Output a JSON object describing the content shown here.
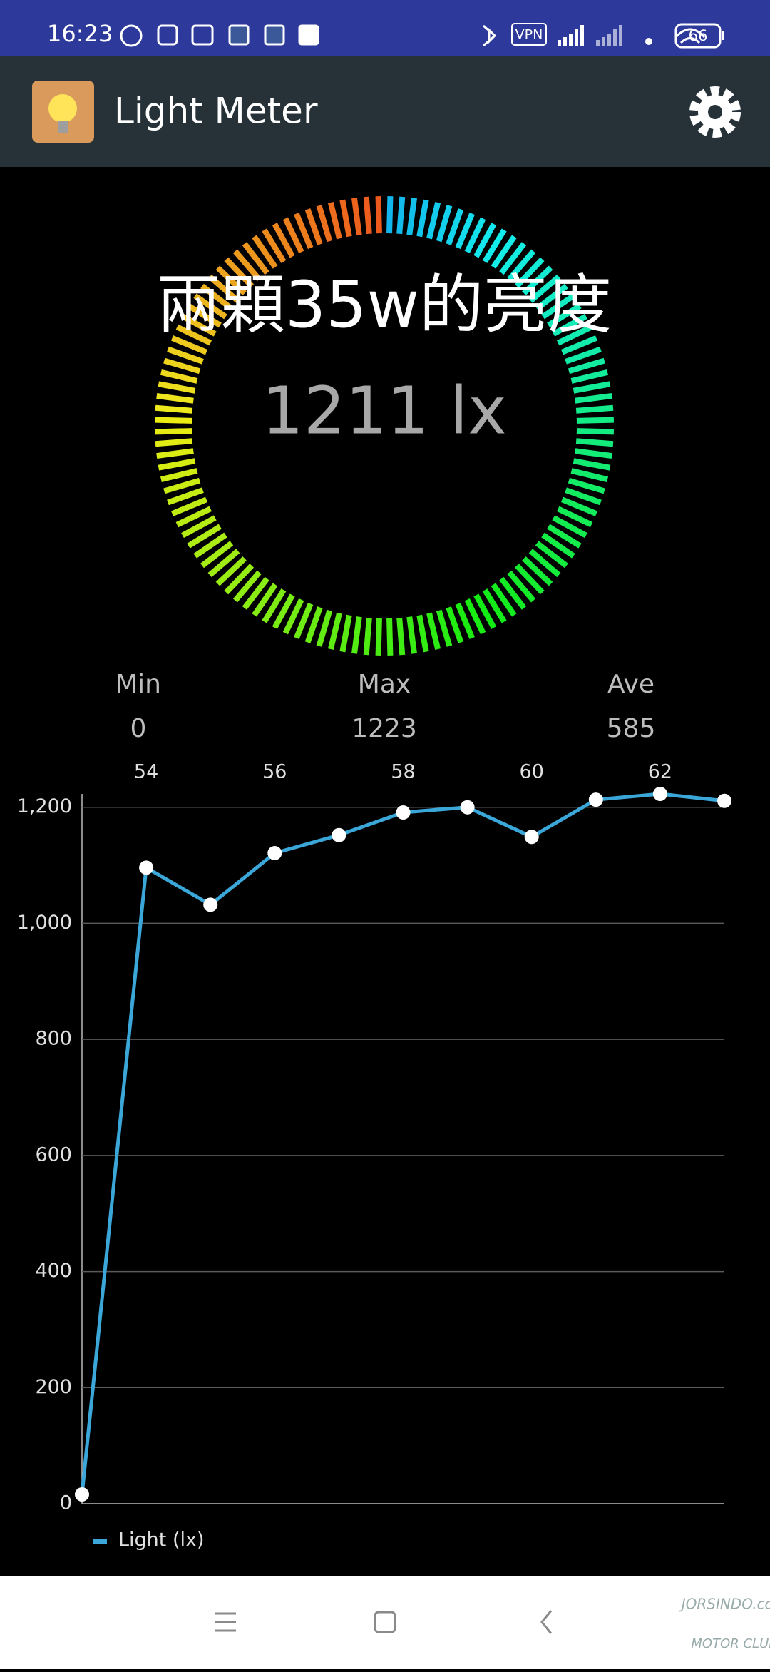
{
  "status_bar": {
    "time": "16:23",
    "vpn": "VPN",
    "battery": "66"
  },
  "app_bar": {
    "title": "Light Meter"
  },
  "meter": {
    "label": "兩顆35w的亮度",
    "reading": "1211 lx"
  },
  "stats": [
    {
      "label": "Min",
      "value": 0
    },
    {
      "label": "Max",
      "value": 1223
    },
    {
      "label": "Ave",
      "value": 585
    }
  ],
  "chart_data": {
    "type": "line",
    "x": [
      53,
      54,
      55,
      56,
      57,
      58,
      59,
      60,
      61,
      62,
      63
    ],
    "series": [
      {
        "name": "Light (lx)",
        "color": "#3ba7d9",
        "values": [
          16,
          1096,
          1032,
          1121,
          1152,
          1191,
          1200,
          1149,
          1213,
          1223,
          1211
        ]
      }
    ],
    "xlim": [
      53,
      63
    ],
    "ylim": [
      0,
      1223
    ],
    "xticks": [
      54,
      56,
      58,
      60,
      62
    ],
    "yticks": [
      0,
      200,
      400,
      600,
      800,
      {
        "value": 1000,
        "label": "1,000"
      },
      {
        "value": 1200,
        "label": "1,200"
      }
    ],
    "grid": true,
    "legend": "bottom-left"
  },
  "watermark": {
    "brand": "JORSINDO.com",
    "club": "MOTOR CLUB"
  }
}
